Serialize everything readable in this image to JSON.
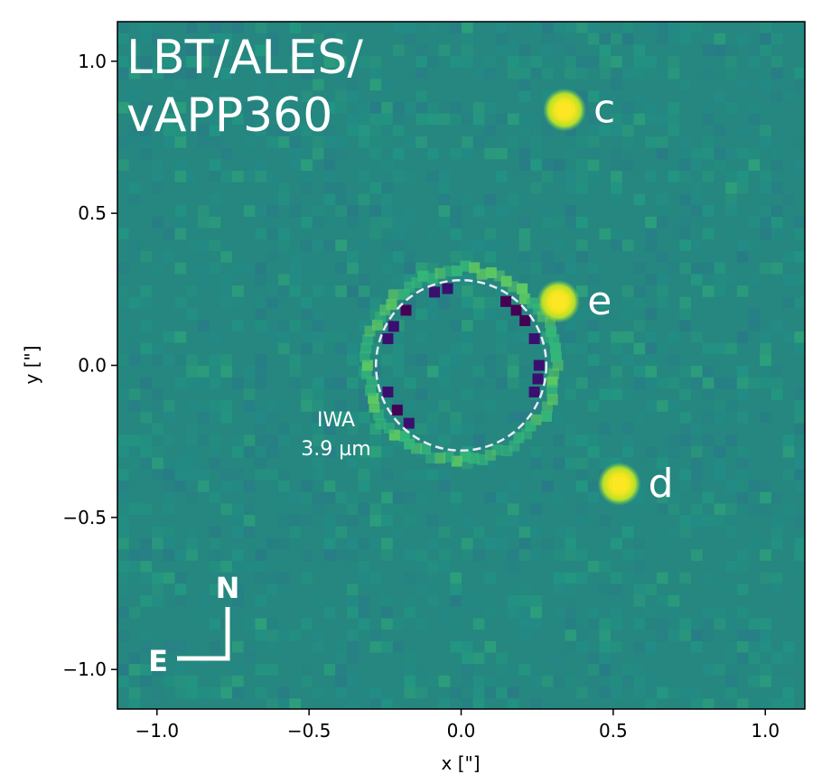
{
  "image": {
    "title_line1": "LBT/ALES/",
    "title_line2": "vAPP360",
    "xlabel": "x [\"]",
    "ylabel": "y [\"]",
    "x_ticks": [
      "−1.0",
      "−0.5",
      "0.0",
      "0.5",
      "1.0"
    ],
    "y_ticks": [
      "1.0",
      "0.5",
      "0.0",
      "−0.5",
      "−1.0"
    ],
    "x_range": [
      -1.13,
      1.13
    ],
    "y_range": [
      -1.13,
      1.13
    ],
    "colormap": "viridis",
    "planets": [
      {
        "label": "c",
        "x": 0.34,
        "y": 0.84
      },
      {
        "label": "e",
        "x": 0.32,
        "y": 0.21
      },
      {
        "label": "d",
        "x": 0.52,
        "y": -0.39
      }
    ],
    "iwa": {
      "line1": "IWA",
      "line2": "3.9 µm",
      "radius_arcsec": 0.28
    },
    "compass": {
      "north": "N",
      "east": "E"
    }
  },
  "colors": {
    "background": "#25877f",
    "bright": "#fde725",
    "dark": "#440154",
    "text_overlay": "#ffffff"
  }
}
